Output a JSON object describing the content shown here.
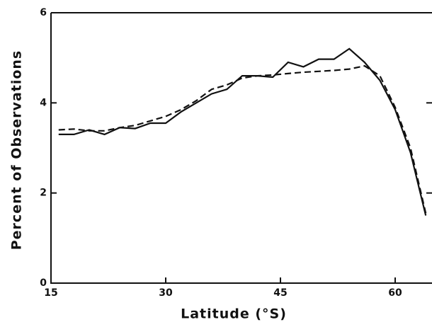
{
  "chart_data": {
    "type": "line",
    "xlabel": "Latitude (°S)",
    "ylabel": "Percent of Observations",
    "x": [
      16,
      18,
      20,
      22,
      24,
      26,
      28,
      30,
      32,
      34,
      36,
      38,
      40,
      42,
      44,
      46,
      48,
      50,
      52,
      54,
      56,
      58,
      60,
      62,
      64
    ],
    "series": [
      {
        "color": "#111111",
        "linestyle": "solid",
        "values": [
          3.3,
          3.3,
          3.4,
          3.3,
          3.45,
          3.43,
          3.55,
          3.55,
          3.8,
          4.0,
          4.2,
          4.3,
          4.6,
          4.6,
          4.57,
          4.9,
          4.8,
          4.97,
          4.97,
          5.2,
          4.9,
          4.5,
          3.85,
          2.9,
          1.5
        ]
      },
      {
        "color": "#111111",
        "linestyle": "dashed",
        "values": [
          3.4,
          3.42,
          3.38,
          3.38,
          3.45,
          3.5,
          3.6,
          3.7,
          3.85,
          4.05,
          4.3,
          4.4,
          4.55,
          4.6,
          4.62,
          4.65,
          4.68,
          4.7,
          4.72,
          4.75,
          4.82,
          4.6,
          3.9,
          3.0,
          1.55
        ]
      }
    ],
    "xlim": [
      15,
      65
    ],
    "xticks": [
      15,
      30,
      45,
      60
    ],
    "ylim": [
      0,
      6
    ],
    "yticks": [
      0,
      2,
      4,
      6
    ]
  }
}
